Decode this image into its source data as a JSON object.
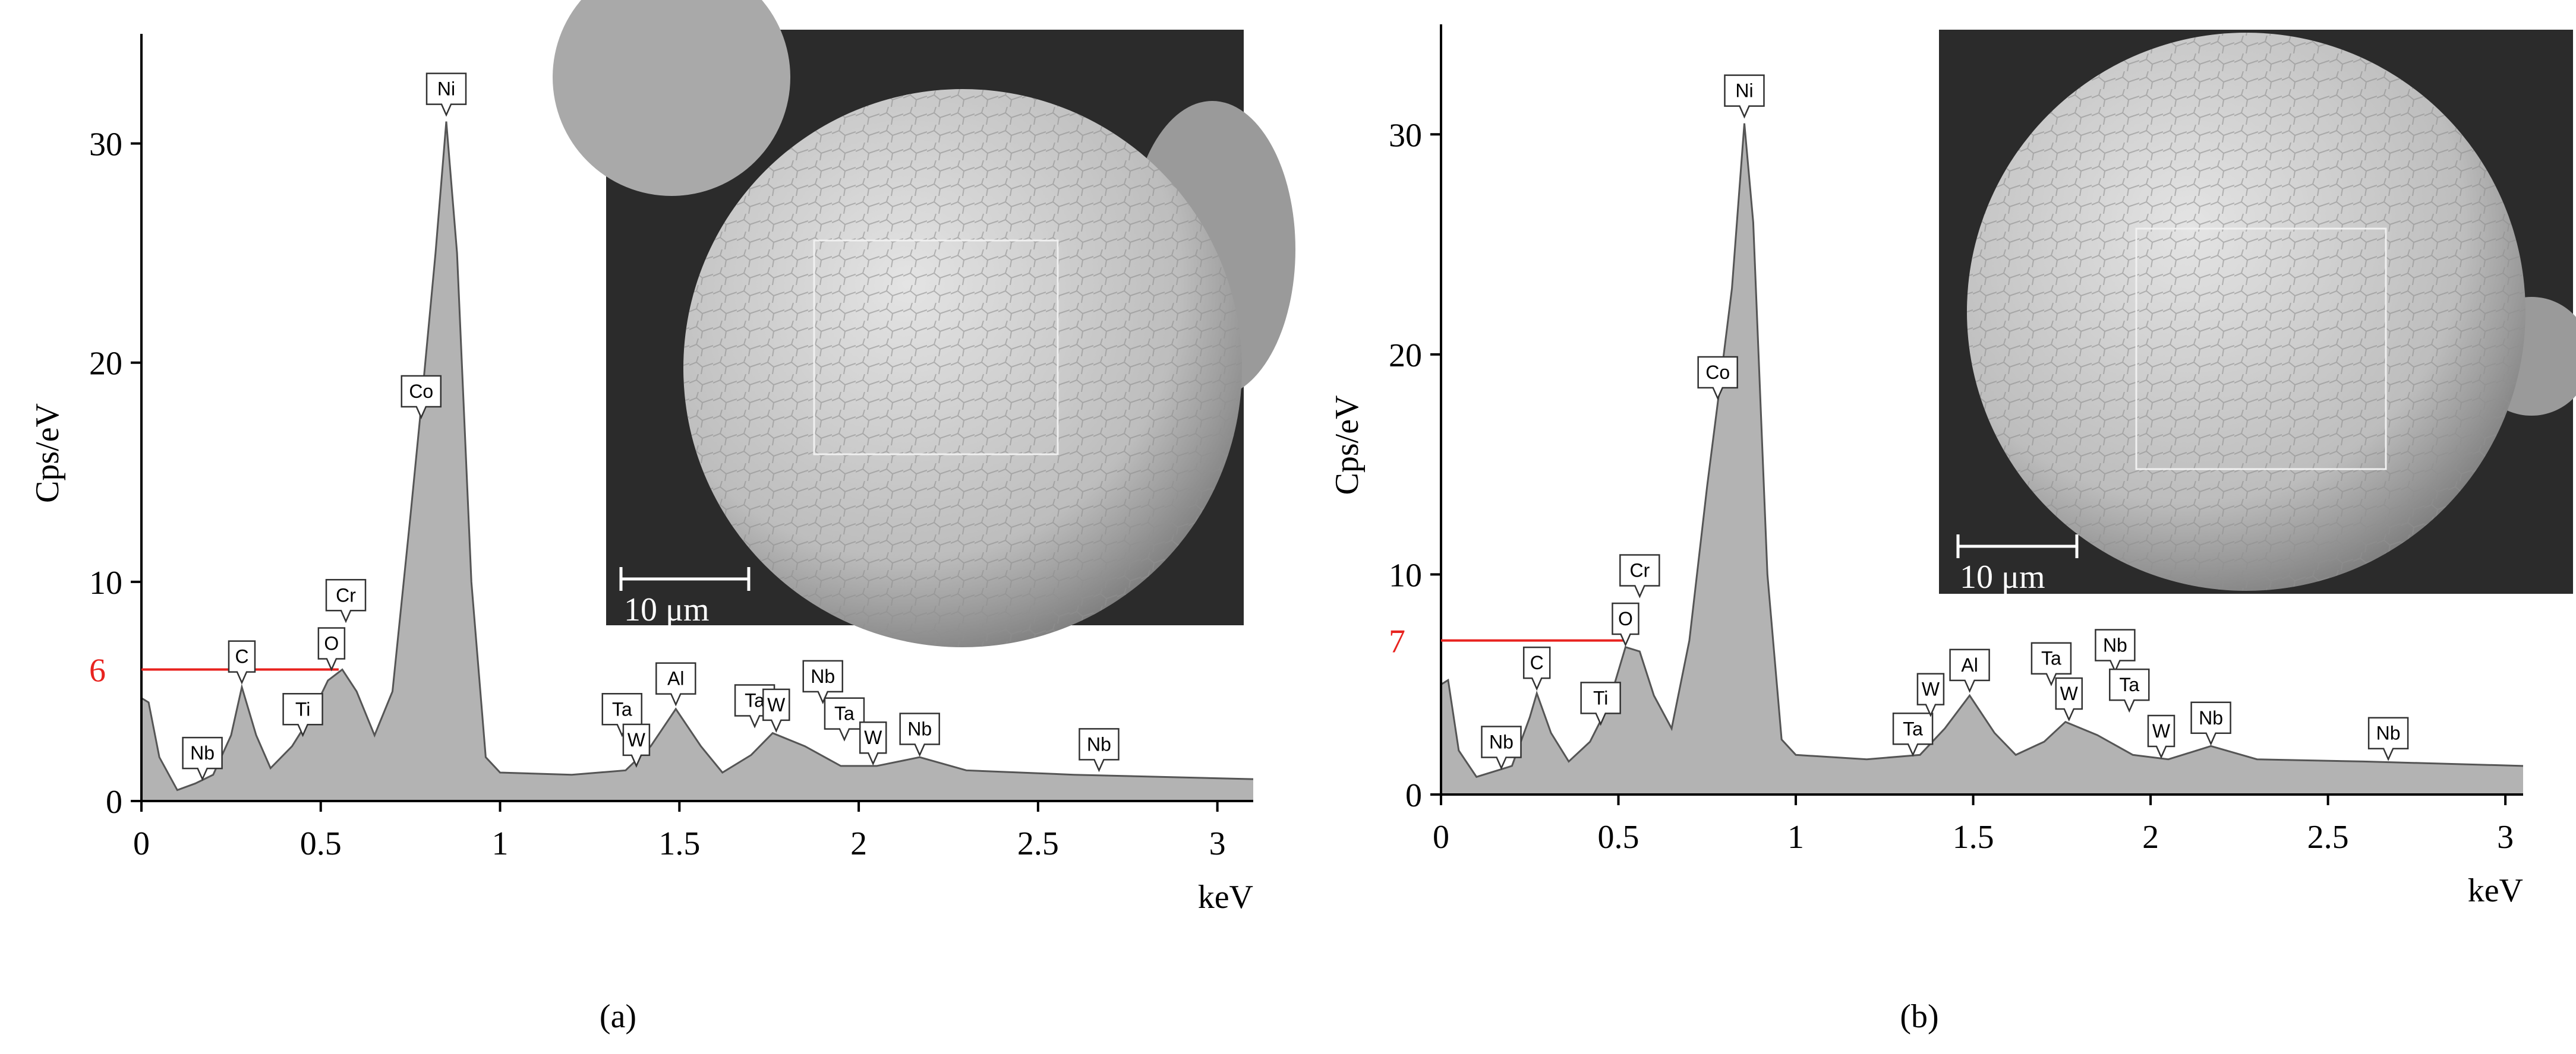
{
  "chart_data": [
    {
      "type": "area",
      "panel_label": "(a)",
      "y_label": "Cps/eV",
      "x_label": "keV",
      "color": "#b3b3b3",
      "x": [
        0,
        0.02,
        0.05,
        0.1,
        0.15,
        0.2,
        0.25,
        0.28,
        0.32,
        0.36,
        0.42,
        0.47,
        0.52,
        0.56,
        0.6,
        0.65,
        0.7,
        0.75,
        0.78,
        0.82,
        0.85,
        0.88,
        0.92,
        0.96,
        1.0,
        1.2,
        1.35,
        1.42,
        1.49,
        1.56,
        1.62,
        1.7,
        1.76,
        1.85,
        1.95,
        2.05,
        2.17,
        2.3,
        2.6,
        3.1
      ],
      "values": [
        4.7,
        4.5,
        2,
        0.5,
        0.8,
        1.2,
        3,
        5.2,
        3,
        1.5,
        2.5,
        3.8,
        5.5,
        6,
        5,
        3,
        5,
        13,
        18,
        25,
        31,
        25,
        10,
        2,
        1.3,
        1.2,
        1.4,
        2.5,
        4.2,
        2.5,
        1.3,
        2.1,
        3.1,
        2.5,
        1.6,
        1.6,
        2.0,
        1.4,
        1.2,
        1.0
      ],
      "xlim": [
        0,
        3.1
      ],
      "ylim": [
        0,
        35
      ],
      "xticks": [
        0,
        0.5,
        1,
        1.5,
        2,
        2.5,
        3
      ],
      "yticks": [
        0,
        10,
        20,
        30
      ],
      "marker": {
        "y": 6,
        "x": 0.55,
        "color": "#e8231f"
      },
      "annotations": [
        {
          "label": "Nb",
          "x": 0.17,
          "y": 1.0
        },
        {
          "label": "C",
          "x": 0.28,
          "y": 5.4
        },
        {
          "label": "Ti",
          "x": 0.45,
          "y": 3.0
        },
        {
          "label": "O",
          "x": 0.53,
          "y": 6.0
        },
        {
          "label": "Cr",
          "x": 0.57,
          "y": 8.2
        },
        {
          "label": "Co",
          "x": 0.78,
          "y": 17.5
        },
        {
          "label": "Ni",
          "x": 0.85,
          "y": 31.3
        },
        {
          "label": "Ta",
          "x": 1.34,
          "y": 3.0
        },
        {
          "label": "W",
          "x": 1.38,
          "y": 1.6
        },
        {
          "label": "Al",
          "x": 1.49,
          "y": 4.4
        },
        {
          "label": "Ta",
          "x": 1.71,
          "y": 3.4
        },
        {
          "label": "W",
          "x": 1.77,
          "y": 3.2
        },
        {
          "label": "Nb",
          "x": 1.9,
          "y": 4.5
        },
        {
          "label": "Ta",
          "x": 1.96,
          "y": 2.8
        },
        {
          "label": "W",
          "x": 2.04,
          "y": 1.7
        },
        {
          "label": "Nb",
          "x": 2.17,
          "y": 2.1
        },
        {
          "label": "Nb",
          "x": 2.67,
          "y": 1.4
        }
      ],
      "inset_scale_label": "10 μm"
    },
    {
      "type": "area",
      "panel_label": "(b)",
      "y_label": "Cps/eV",
      "x_label": "keV",
      "color": "#b3b3b3",
      "x": [
        0,
        0.02,
        0.05,
        0.1,
        0.2,
        0.25,
        0.27,
        0.31,
        0.36,
        0.42,
        0.47,
        0.52,
        0.56,
        0.6,
        0.65,
        0.7,
        0.75,
        0.78,
        0.82,
        0.855,
        0.88,
        0.92,
        0.96,
        1.0,
        1.2,
        1.35,
        1.42,
        1.49,
        1.56,
        1.62,
        1.7,
        1.76,
        1.85,
        1.95,
        2.05,
        2.17,
        2.3,
        2.6,
        3.05
      ],
      "values": [
        5,
        5.2,
        2,
        0.8,
        1.3,
        3.5,
        4.6,
        2.8,
        1.5,
        2.4,
        4,
        6.7,
        6.5,
        4.5,
        3,
        7,
        14,
        17.8,
        23,
        30.5,
        26,
        10,
        2.5,
        1.8,
        1.6,
        1.8,
        3,
        4.5,
        2.8,
        1.8,
        2.4,
        3.3,
        2.7,
        1.8,
        1.6,
        2.2,
        1.6,
        1.5,
        1.3
      ],
      "xlim": [
        0,
        3.05
      ],
      "ylim": [
        0,
        35
      ],
      "xticks": [
        0,
        0.5,
        1,
        1.5,
        2,
        2.5,
        3
      ],
      "yticks": [
        0,
        10,
        20,
        30
      ],
      "marker": {
        "y": 7,
        "x": 0.52,
        "color": "#e8231f"
      },
      "annotations": [
        {
          "label": "Nb",
          "x": 0.17,
          "y": 1.2
        },
        {
          "label": "C",
          "x": 0.27,
          "y": 4.8
        },
        {
          "label": "Ti",
          "x": 0.45,
          "y": 3.2
        },
        {
          "label": "O",
          "x": 0.52,
          "y": 6.8
        },
        {
          "label": "Cr",
          "x": 0.56,
          "y": 9.0
        },
        {
          "label": "Co",
          "x": 0.78,
          "y": 18
        },
        {
          "label": "Ni",
          "x": 0.855,
          "y": 30.8
        },
        {
          "label": "Ta",
          "x": 1.33,
          "y": 1.8
        },
        {
          "label": "W",
          "x": 1.38,
          "y": 3.6
        },
        {
          "label": "Al",
          "x": 1.49,
          "y": 4.7
        },
        {
          "label": "Ta",
          "x": 1.72,
          "y": 5.0
        },
        {
          "label": "W",
          "x": 1.77,
          "y": 3.4
        },
        {
          "label": "Nb",
          "x": 1.9,
          "y": 5.6
        },
        {
          "label": "Ta",
          "x": 1.94,
          "y": 3.8
        },
        {
          "label": "W",
          "x": 2.03,
          "y": 1.7
        },
        {
          "label": "Nb",
          "x": 2.17,
          "y": 2.3
        },
        {
          "label": "Nb",
          "x": 2.67,
          "y": 1.6
        }
      ],
      "inset_scale_label": "10 μm"
    }
  ]
}
